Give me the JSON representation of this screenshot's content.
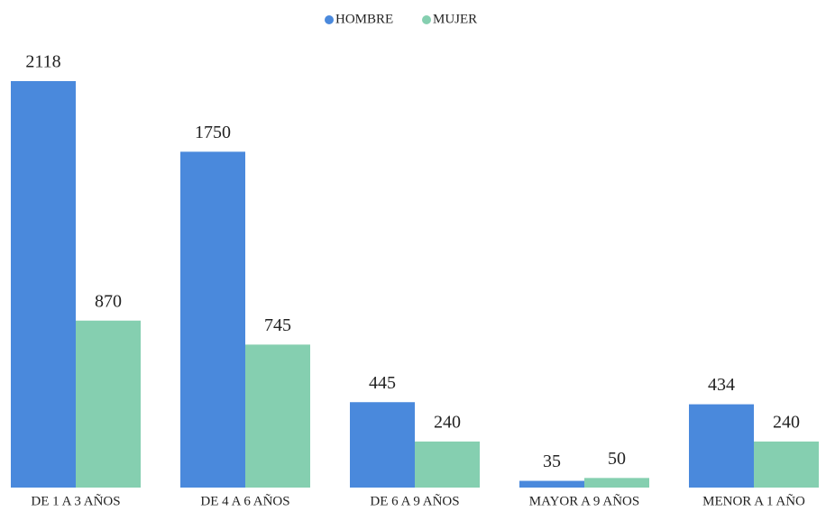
{
  "chart_data": {
    "type": "bar",
    "categories": [
      "DE 1 A 3 AÑOS",
      "DE 4 A 6 AÑOS",
      "DE 6 A 9 AÑOS",
      "MAYOR A 9 AÑOS",
      "MENOR A 1 AÑO"
    ],
    "series": [
      {
        "name": "HOMBRE",
        "color": "#4a89dc",
        "values": [
          2118,
          1750,
          445,
          35,
          434
        ]
      },
      {
        "name": "MUJER",
        "color": "#85cfb0",
        "values": [
          870,
          745,
          240,
          50,
          240
        ]
      }
    ],
    "legend": "top"
  }
}
